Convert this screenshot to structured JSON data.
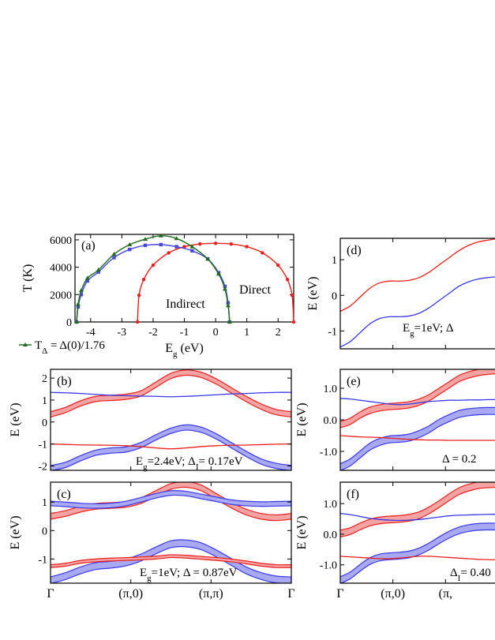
{
  "colors": {
    "red": "#e8201e",
    "blue": "#3838e6",
    "green": "#1f6a1f",
    "magenta": "#e0195a",
    "indirect_blue": "#4747e0",
    "light_red": "#f4a3a3",
    "light_blue": "#a9a9f2",
    "axis": "#000000"
  },
  "chart_data": [
    {
      "panel": "a",
      "type": "line",
      "panel_label": "(a)",
      "xlabel": "E",
      "xlabel_sub": "g",
      "xlabel_unit": " (eV)",
      "ylabel": "T (K)",
      "xlim": [
        -4.5,
        2.5
      ],
      "ylim": [
        0,
        6400
      ],
      "x_ticks": [
        -4,
        -3,
        -2,
        -1,
        0,
        1,
        2
      ],
      "y_ticks": [
        0,
        2000,
        4000,
        6000
      ],
      "annotations": {
        "direct": "Direct",
        "indirect": "Indirect"
      },
      "legend": {
        "text": "T",
        "sub": "Δ",
        "rest": " = Δ(0)/1.76"
      },
      "series": [
        {
          "name": "Direct",
          "color": "#e8201e",
          "marker": "circle",
          "x": [
            -2.5,
            -2.45,
            -2.3,
            -2.0,
            -1.5,
            -1.0,
            -0.5,
            0.0,
            0.5,
            1.0,
            1.5,
            2.0,
            2.3,
            2.45,
            2.5
          ],
          "y": [
            0,
            1950,
            3100,
            4150,
            5050,
            5500,
            5700,
            5750,
            5700,
            5500,
            5050,
            4150,
            3100,
            1950,
            0
          ]
        },
        {
          "name": "Indirect",
          "color": "#4747e0",
          "marker": "square",
          "x": [
            -4.45,
            -4.4,
            -4.3,
            -4.1,
            -3.75,
            -3.25,
            -2.75,
            -2.25,
            -1.75,
            -1.25,
            -0.75,
            -0.25,
            0.1,
            0.3,
            0.4,
            0.45
          ],
          "y": [
            0,
            1100,
            2000,
            3000,
            3650,
            4700,
            5300,
            5600,
            5650,
            5500,
            5200,
            4600,
            3600,
            2600,
            1400,
            0
          ]
        },
        {
          "name": "T_Δ",
          "color": "#1f6a1f",
          "marker": "triangle",
          "x": [
            -4.45,
            -4.4,
            -4.3,
            -4.1,
            -3.75,
            -3.25,
            -2.75,
            -2.25,
            -1.75,
            -1.25,
            -0.75,
            -0.25,
            0.1,
            0.3,
            0.4,
            0.45
          ],
          "y": [
            0,
            1300,
            2300,
            3200,
            3800,
            4950,
            5650,
            6050,
            6300,
            6100,
            5500,
            4600,
            3500,
            2400,
            1200,
            0
          ]
        }
      ]
    },
    {
      "panel": "b",
      "type": "line",
      "panel_label": "(b)",
      "ylabel": "E (eV)",
      "ylim": [
        -2.2,
        2.4
      ],
      "y_ticks": [
        -2,
        -1,
        0,
        1,
        2
      ],
      "annotation": {
        "pre": "E",
        "sub1": "g",
        "mid": "=2.4eV; Δ",
        "sub2": "I",
        "post": "= 0.17eV"
      },
      "x": [
        0,
        0.0625,
        0.125,
        0.1875,
        0.25,
        0.3125,
        0.375,
        0.4375,
        0.5,
        0.5625,
        0.625,
        0.6875,
        0.75,
        0.8125,
        0.875,
        0.9375,
        1.0
      ],
      "bands": [
        {
          "name": "c-upper",
          "color": "#e8201e",
          "fill": "#f4a3a3",
          "width": 0.24,
          "y": [
            0.35,
            0.55,
            0.85,
            1.05,
            1.1,
            1.15,
            1.3,
            1.7,
            2.1,
            2.25,
            2.15,
            1.85,
            1.45,
            1.05,
            0.7,
            0.45,
            0.35
          ]
        },
        {
          "name": "v-lower",
          "color": "#3838e6",
          "fill": "#a9a9f2",
          "width": 0.24,
          "y": [
            -2.1,
            -1.95,
            -1.65,
            -1.4,
            -1.3,
            -1.25,
            -1.05,
            -0.7,
            -0.4,
            -0.25,
            -0.35,
            -0.65,
            -1.05,
            -1.45,
            -1.8,
            -2.0,
            -2.1
          ]
        }
      ],
      "lines": [
        {
          "name": "flat-upper",
          "color": "#3838e6",
          "y": [
            1.35,
            1.33,
            1.3,
            1.26,
            1.22,
            1.2,
            1.18,
            1.17,
            1.15,
            1.17,
            1.2,
            1.24,
            1.28,
            1.3,
            1.33,
            1.35,
            1.35
          ]
        },
        {
          "name": "flat-lower",
          "color": "#e8201e",
          "y": [
            -1.0,
            -1.02,
            -1.04,
            -1.05,
            -1.06,
            -1.08,
            -1.12,
            -1.18,
            -1.22,
            -1.18,
            -1.12,
            -1.08,
            -1.06,
            -1.05,
            -1.03,
            -1.01,
            -1.0
          ]
        }
      ]
    },
    {
      "panel": "c",
      "type": "line",
      "panel_label": "(c)",
      "ylabel": "E (eV)",
      "ylim": [
        -1.85,
        1.7
      ],
      "y_ticks": [
        -1,
        0,
        1
      ],
      "annotation": {
        "pre": "E",
        "sub1": "g",
        "mid": "=1eV; Δ = 0.87eV",
        "sub2": "",
        "post": ""
      },
      "x_tick_labels": [
        "Γ",
        "(π,0)",
        "(π,π)",
        "Γ"
      ],
      "x": [
        0,
        0.0625,
        0.125,
        0.1875,
        0.25,
        0.3125,
        0.375,
        0.4375,
        0.5,
        0.5625,
        0.625,
        0.6875,
        0.75,
        0.8125,
        0.875,
        0.9375,
        1.0
      ],
      "bands": [
        {
          "name": "c-upper",
          "color": "#e8201e",
          "fill": "#f4a3a3",
          "width": 0.2,
          "y": [
            0.5,
            0.6,
            0.75,
            0.85,
            0.88,
            0.92,
            1.05,
            1.3,
            1.55,
            1.62,
            1.5,
            1.2,
            0.9,
            0.65,
            0.5,
            0.45,
            0.5
          ]
        },
        {
          "name": "c-flat",
          "color": "#3838e6",
          "fill": "#a9a9f2",
          "width": 0.16,
          "y": [
            0.95,
            0.92,
            0.88,
            0.86,
            0.88,
            0.95,
            1.08,
            1.22,
            1.32,
            1.3,
            1.2,
            1.1,
            1.0,
            0.95,
            0.93,
            0.94,
            0.95
          ]
        },
        {
          "name": "v-lower",
          "color": "#3838e6",
          "fill": "#a9a9f2",
          "width": 0.24,
          "y": [
            -1.75,
            -1.6,
            -1.4,
            -1.25,
            -1.2,
            -1.12,
            -0.95,
            -0.7,
            -0.48,
            -0.45,
            -0.55,
            -0.8,
            -1.1,
            -1.4,
            -1.6,
            -1.72,
            -1.75
          ]
        },
        {
          "name": "v-flat",
          "color": "#e8201e",
          "fill": "#f4a3a3",
          "width": 0.1,
          "y": [
            -1.25,
            -1.2,
            -1.1,
            -1.05,
            -1.02,
            -1.0,
            -0.98,
            -0.95,
            -0.9,
            -0.92,
            -0.96,
            -1.0,
            -1.05,
            -1.12,
            -1.2,
            -1.25,
            -1.25
          ]
        }
      ],
      "lines": []
    },
    {
      "panel": "d",
      "type": "line",
      "panel_label": "(d)",
      "ylabel": "E (eV)",
      "ylim": [
        -1.5,
        1.6
      ],
      "y_ticks": [
        -1,
        0,
        1
      ],
      "annotation": {
        "pre": "E",
        "sub1": "g",
        "mid": "=1eV; Δ",
        "sub2": "",
        "post": ""
      },
      "x": [
        0,
        0.0625,
        0.125,
        0.1875,
        0.25,
        0.3125,
        0.375,
        0.4375,
        0.5,
        0.5625,
        0.625,
        0.6875,
        0.75,
        0.8125,
        0.875,
        0.9375,
        1.0
      ],
      "bands": [],
      "lines": [
        {
          "name": "upper",
          "color": "#e8201e",
          "y": [
            -0.45,
            -0.3,
            -0.05,
            0.2,
            0.35,
            0.4,
            0.4,
            0.42,
            0.5,
            0.65,
            0.85,
            1.05,
            1.25,
            1.4,
            1.5,
            1.55,
            1.6
          ]
        },
        {
          "name": "lower",
          "color": "#3838e6",
          "y": [
            -1.45,
            -1.3,
            -1.05,
            -0.8,
            -0.65,
            -0.6,
            -0.6,
            -0.58,
            -0.5,
            -0.35,
            -0.15,
            0.05,
            0.25,
            0.38,
            0.46,
            0.5,
            0.52
          ]
        }
      ]
    },
    {
      "panel": "e",
      "type": "line",
      "panel_label": "(e)",
      "ylabel": "E (eV)",
      "ylim": [
        -1.6,
        1.6
      ],
      "y_ticks": [
        -1.0,
        0.0,
        1.0
      ],
      "y_tick_labels": [
        "-1.0",
        "0.0",
        "1.0"
      ],
      "annotation": {
        "pre": "Δ = 0.2",
        "sub1": "",
        "mid": "",
        "sub2": "",
        "post": ""
      },
      "x": [
        0,
        0.0625,
        0.125,
        0.1875,
        0.25,
        0.3125,
        0.375,
        0.4375,
        0.5,
        0.5625,
        0.625,
        0.6875,
        0.75,
        0.8125,
        0.875,
        0.9375,
        1.0
      ],
      "bands": [
        {
          "name": "c-upper",
          "color": "#e8201e",
          "fill": "#f4a3a3",
          "width": 0.2,
          "y": [
            -0.15,
            -0.05,
            0.15,
            0.3,
            0.38,
            0.42,
            0.44,
            0.48,
            0.56,
            0.7,
            0.9,
            1.1,
            1.3,
            1.42,
            1.5,
            1.54,
            1.56
          ]
        },
        {
          "name": "v-lower",
          "color": "#3838e6",
          "fill": "#a9a9f2",
          "width": 0.22,
          "y": [
            -1.5,
            -1.35,
            -1.1,
            -0.85,
            -0.7,
            -0.62,
            -0.6,
            -0.56,
            -0.45,
            -0.3,
            -0.1,
            0.05,
            0.18,
            0.24,
            0.27,
            0.28,
            0.28
          ]
        }
      ],
      "lines": [
        {
          "name": "flat-blue",
          "color": "#3838e6",
          "y": [
            0.68,
            0.66,
            0.62,
            0.58,
            0.54,
            0.5,
            0.48,
            0.5,
            0.54,
            0.58,
            0.6,
            0.62,
            0.62,
            0.63,
            0.63,
            0.64,
            0.64
          ]
        },
        {
          "name": "flat-red",
          "color": "#e8201e",
          "y": [
            -0.5,
            -0.52,
            -0.54,
            -0.55,
            -0.56,
            -0.58,
            -0.6,
            -0.62,
            -0.63,
            -0.64,
            -0.64,
            -0.65,
            -0.65,
            -0.65,
            -0.65,
            -0.65,
            -0.65
          ]
        }
      ]
    },
    {
      "panel": "f",
      "type": "line",
      "panel_label": "(f)",
      "ylabel": "E (eV)",
      "ylim": [
        -1.6,
        1.7
      ],
      "y_ticks": [
        -1.0,
        0.0,
        1.0
      ],
      "y_tick_labels": [
        "-1.0",
        "0.0",
        "1.0"
      ],
      "annotation": {
        "pre": "Δ",
        "sub1": "I",
        "mid": "= 0.40",
        "sub2": "",
        "post": ""
      },
      "x_tick_labels": [
        "Γ",
        "(π,0)",
        "(π,"
      ],
      "x": [
        0,
        0.0625,
        0.125,
        0.1875,
        0.25,
        0.3125,
        0.375,
        0.4375,
        0.5,
        0.5625,
        0.625,
        0.6875,
        0.75,
        0.8125,
        0.875,
        0.9375,
        1.0
      ],
      "bands": [
        {
          "name": "c-upper",
          "color": "#e8201e",
          "fill": "#f4a3a3",
          "width": 0.22,
          "y": [
            0.02,
            0.1,
            0.25,
            0.38,
            0.45,
            0.48,
            0.5,
            0.54,
            0.62,
            0.78,
            0.98,
            1.2,
            1.4,
            1.52,
            1.6,
            1.63,
            1.64
          ]
        },
        {
          "name": "v-lower",
          "color": "#3838e6",
          "fill": "#a9a9f2",
          "width": 0.22,
          "y": [
            -1.5,
            -1.35,
            -1.1,
            -0.88,
            -0.76,
            -0.72,
            -0.7,
            -0.66,
            -0.56,
            -0.4,
            -0.2,
            -0.02,
            0.12,
            0.2,
            0.24,
            0.25,
            0.25
          ]
        }
      ],
      "lines": [
        {
          "name": "flat-blue",
          "color": "#3838e6",
          "y": [
            0.68,
            0.64,
            0.58,
            0.52,
            0.48,
            0.46,
            0.45,
            0.46,
            0.48,
            0.52,
            0.56,
            0.6,
            0.62,
            0.63,
            0.64,
            0.65,
            0.65
          ]
        },
        {
          "name": "flat-red",
          "color": "#e8201e",
          "y": [
            -0.72,
            -0.74,
            -0.76,
            -0.78,
            -0.8,
            -0.8,
            -0.78,
            -0.75,
            -0.72,
            -0.72,
            -0.74,
            -0.76,
            -0.78,
            -0.8,
            -0.82,
            -0.83,
            -0.84
          ]
        }
      ]
    }
  ]
}
